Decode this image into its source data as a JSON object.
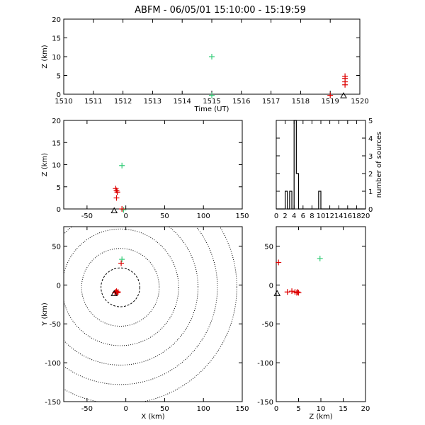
{
  "title": "ABFM - 06/05/01 15:10:00 - 15:19:59",
  "colors": {
    "green": "#33cc77",
    "red": "#dd0000",
    "axis": "#000000"
  },
  "chart_data": [
    {
      "id": "time-height",
      "type": "scatter",
      "xlabel": "Time (UT)",
      "ylabel": "Z (km)",
      "xlim": [
        1510,
        1520
      ],
      "ylim": [
        0,
        20
      ],
      "xticks": [
        "1510",
        "1511",
        "1512",
        "1513",
        "1514",
        "1515",
        "1516",
        "1517",
        "1518",
        "1519",
        "1520"
      ],
      "yticks": [
        "0",
        "5",
        "10",
        "15",
        "20"
      ],
      "series": [
        {
          "color": "green",
          "marker": "plus",
          "points": [
            [
              1515.0,
              10.0
            ],
            [
              1515.0,
              -0.3
            ]
          ]
        },
        {
          "color": "red",
          "marker": "plus",
          "points": [
            [
              1519.0,
              -0.3
            ],
            [
              1519.5,
              4.8
            ],
            [
              1519.5,
              4.2
            ],
            [
              1519.5,
              3.3
            ],
            [
              1519.5,
              2.5
            ]
          ]
        },
        {
          "color": "black",
          "marker": "triangle",
          "points": [
            [
              1519.45,
              -0.4
            ]
          ]
        }
      ]
    },
    {
      "id": "x-height",
      "type": "scatter",
      "xlabel": "",
      "ylabel": "Z (km)",
      "xlim": [
        -80,
        150
      ],
      "ylim": [
        0,
        20
      ],
      "xticks": [
        "-50",
        "0",
        "50",
        "100",
        "150"
      ],
      "yticks": [
        "0",
        "5",
        "10",
        "15",
        "20"
      ],
      "series": [
        {
          "color": "green",
          "marker": "plus",
          "points": [
            [
              -5,
              9.8
            ],
            [
              -3,
              -0.2
            ]
          ]
        },
        {
          "color": "red",
          "marker": "plus",
          "points": [
            [
              -13,
              4.6
            ],
            [
              -12,
              4.2
            ],
            [
              -11,
              3.8
            ],
            [
              -12,
              2.5
            ],
            [
              -5,
              0.0
            ]
          ]
        },
        {
          "color": "black",
          "marker": "triangle",
          "points": [
            [
              -15,
              -0.4
            ]
          ]
        }
      ]
    },
    {
      "id": "height-histogram",
      "type": "bar",
      "xlabel": "",
      "ylabel": "number of sources",
      "xlim": [
        0,
        20
      ],
      "ylim": [
        0,
        5
      ],
      "xticks": [
        "0",
        "2",
        "4",
        "6",
        "8",
        "10",
        "12",
        "14",
        "16",
        "18",
        "20"
      ],
      "yticks": [
        "0",
        "1",
        "2",
        "3",
        "4",
        "5"
      ],
      "bin_edges": [
        0,
        0.5,
        1,
        1.5,
        2,
        2.5,
        3,
        3.5,
        4,
        4.5,
        5,
        5.5,
        6,
        6.5,
        7,
        7.5,
        8,
        8.5,
        9,
        9.5,
        10,
        10.5,
        11,
        11.5,
        12,
        12.5,
        13,
        13.5,
        14,
        14.5,
        15,
        15.5,
        16,
        16.5,
        17,
        17.5,
        18,
        18.5,
        19,
        19.5,
        20
      ],
      "counts": [
        0,
        0,
        0,
        0,
        1,
        0,
        1,
        0,
        5,
        2,
        0,
        0,
        0,
        0,
        0,
        0,
        0,
        0,
        0,
        1,
        0,
        0,
        0,
        0,
        0,
        0,
        0,
        0,
        0,
        0,
        0,
        0,
        0,
        0,
        0,
        0,
        0,
        0,
        0,
        0
      ]
    },
    {
      "id": "plan-view",
      "type": "scatter",
      "xlabel": "X (km)",
      "ylabel": "Y (km)",
      "xlim": [
        -80,
        150
      ],
      "ylim": [
        -150,
        75
      ],
      "xticks": [
        "-50",
        "0",
        "50",
        "100",
        "150"
      ],
      "yticks": [
        "-150",
        "-100",
        "-50",
        "0",
        "50"
      ],
      "range_rings_km": [
        25,
        50,
        75,
        100,
        125,
        150
      ],
      "range_ring_center": [
        -7,
        -3
      ],
      "series": [
        {
          "color": "green",
          "marker": "plus",
          "points": [
            [
              -5,
              33
            ]
          ]
        },
        {
          "color": "red",
          "marker": "plus",
          "points": [
            [
              -6,
              28
            ],
            [
              -13,
              -9
            ],
            [
              -12,
              -8
            ],
            [
              -11,
              -10
            ],
            [
              -14,
              -10
            ],
            [
              -10,
              -9
            ]
          ]
        },
        {
          "color": "black",
          "marker": "triangle",
          "points": [
            [
              -15,
              -11
            ]
          ]
        }
      ]
    },
    {
      "id": "height-y",
      "type": "scatter",
      "xlabel": "Z (km)",
      "ylabel": "",
      "xlim": [
        0,
        20
      ],
      "ylim": [
        -150,
        75
      ],
      "xticks": [
        "0",
        "5",
        "10",
        "15",
        "20"
      ],
      "yticks": [
        "-150",
        "-100",
        "-50",
        "0",
        "50"
      ],
      "series": [
        {
          "color": "green",
          "marker": "plus",
          "points": [
            [
              9.8,
              34
            ]
          ]
        },
        {
          "color": "red",
          "marker": "plus",
          "points": [
            [
              0.5,
              29
            ],
            [
              2.5,
              -9
            ],
            [
              3.5,
              -8
            ],
            [
              4.2,
              -9
            ],
            [
              4.6,
              -10
            ],
            [
              5.0,
              -10
            ],
            [
              4.8,
              -9
            ]
          ]
        },
        {
          "color": "black",
          "marker": "triangle",
          "points": [
            [
              0.2,
              -11
            ]
          ]
        }
      ]
    }
  ]
}
